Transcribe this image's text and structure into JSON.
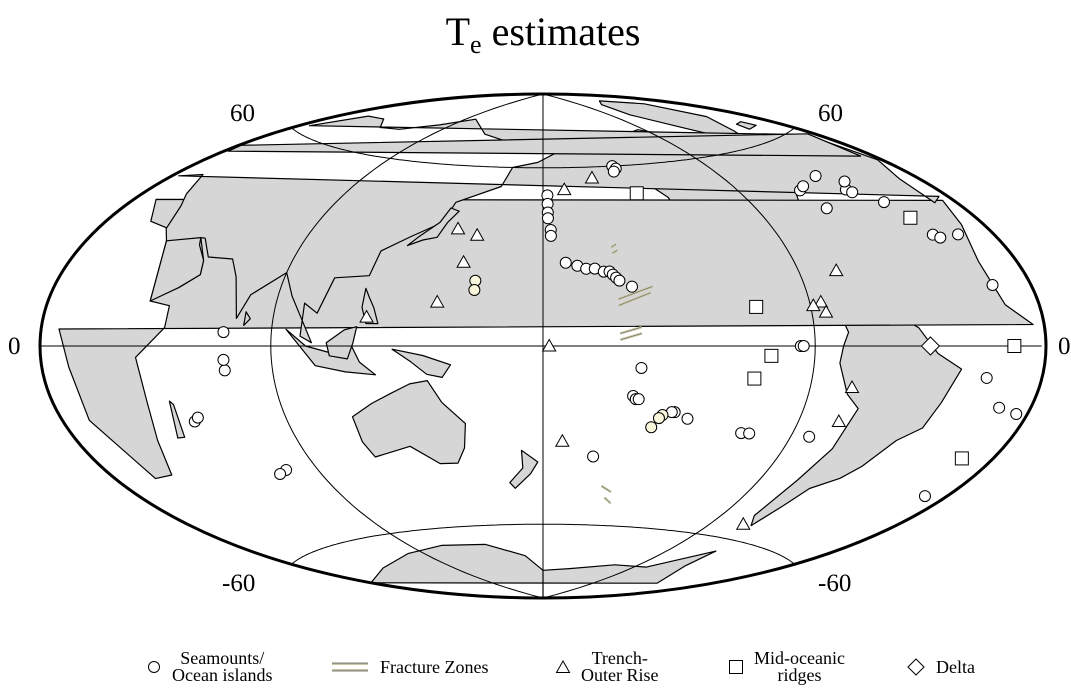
{
  "title": {
    "main": "T",
    "sub": "e",
    "rest": " estimates"
  },
  "lat_labels": {
    "n60_left": "60",
    "n60_right": "60",
    "s60_left": "-60",
    "s60_right": "-60",
    "zero_left": "0",
    "zero_right": "0"
  },
  "legend": {
    "seamounts_line1": "Seamounts/",
    "seamounts_line2": "Ocean islands",
    "fracture": "Fracture Zones",
    "trench_line1": "Trench-",
    "trench_line2": "Outer Rise",
    "ridge_line1": "Mid-oceanic",
    "ridge_line2": "ridges",
    "delta": "Delta"
  },
  "colors": {
    "land": "#d6d6d6",
    "coast": "#000000",
    "marker_fill": "#ffffff",
    "marker_highlight": "#fbf7dd",
    "fracture": "#c9c7a8"
  },
  "projection": "Hammer-Aitoff, central meridian 180",
  "markers": {
    "seamounts": [
      {
        "lon": -141,
        "lat": 60
      },
      {
        "lon": -140,
        "lat": 59
      },
      {
        "lon": -142,
        "lat": 58
      },
      {
        "lon": -178,
        "lat": 50
      },
      {
        "lon": -178,
        "lat": 47
      },
      {
        "lon": -178,
        "lat": 44
      },
      {
        "lon": -178,
        "lat": 42
      },
      {
        "lon": -177,
        "lat": 38
      },
      {
        "lon": -177,
        "lat": 36
      },
      {
        "lon": -172,
        "lat": 27
      },
      {
        "lon": -168,
        "lat": 26
      },
      {
        "lon": -165,
        "lat": 25
      },
      {
        "lon": -162,
        "lat": 25
      },
      {
        "lon": -159,
        "lat": 24
      },
      {
        "lon": -157,
        "lat": 24
      },
      {
        "lon": -156,
        "lat": 23
      },
      {
        "lon": -155,
        "lat": 22
      },
      {
        "lon": -154,
        "lat": 21
      },
      {
        "lon": -150,
        "lat": 19
      },
      {
        "lon": -148,
        "lat": -7
      },
      {
        "lon": -150,
        "lat": -16
      },
      {
        "lon": -149,
        "lat": -17
      },
      {
        "lon": -148,
        "lat": -17
      },
      {
        "lon": -135,
        "lat": -21
      },
      {
        "lon": -136,
        "lat": -21
      },
      {
        "lon": -130,
        "lat": -23
      },
      {
        "lon": -161,
        "lat": -36
      },
      {
        "lon": -109,
        "lat": -27
      },
      {
        "lon": -106,
        "lat": -27
      },
      {
        "lon": -83,
        "lat": -27
      },
      {
        "lon": -95,
        "lat": 0
      },
      {
        "lon": -94,
        "lat": 0
      },
      {
        "lon": -62,
        "lat": 46
      },
      {
        "lon": -58,
        "lat": 47
      },
      {
        "lon": -60,
        "lat": 40
      },
      {
        "lon": -45,
        "lat": 49
      },
      {
        "lon": -41,
        "lat": 44
      },
      {
        "lon": -40,
        "lat": 43
      },
      {
        "lon": -36,
        "lat": 46
      },
      {
        "lon": -32,
        "lat": 39
      },
      {
        "lon": -27,
        "lat": 29
      },
      {
        "lon": -25,
        "lat": 28
      },
      {
        "lon": -16,
        "lat": 28
      },
      {
        "lon": -17,
        "lat": 15
      },
      {
        "lon": -24,
        "lat": -8
      },
      {
        "lon": -14,
        "lat": -15
      },
      {
        "lon": -5,
        "lat": -16
      },
      {
        "lon": -10,
        "lat": -38
      },
      {
        "lon": 55,
        "lat": -21
      },
      {
        "lon": 57,
        "lat": -20
      },
      {
        "lon": 73,
        "lat": -7
      },
      {
        "lon": 73,
        "lat": -4
      },
      {
        "lon": 73,
        "lat": 4
      },
      {
        "lon": 77,
        "lat": -37
      },
      {
        "lon": 73,
        "lat": -38
      }
    ],
    "seamounts_highlight": [
      {
        "lon": 157,
        "lat": 21
      },
      {
        "lon": 157,
        "lat": 18
      },
      {
        "lon": -139,
        "lat": -22
      },
      {
        "lon": -140,
        "lat": -23
      },
      {
        "lon": -142,
        "lat": -26
      }
    ],
    "trench": [
      {
        "lon": 145,
        "lat": 14
      },
      {
        "lon": 155,
        "lat": 36
      },
      {
        "lon": 147,
        "lat": 38
      },
      {
        "lon": 152,
        "lat": 27
      },
      {
        "lon": -170,
        "lat": 52
      },
      {
        "lon": -155,
        "lat": 56
      },
      {
        "lon": -173,
        "lat": -31
      },
      {
        "lon": 122,
        "lat": 9
      },
      {
        "lon": -76,
        "lat": 22
      },
      {
        "lon": -86,
        "lat": 13
      },
      {
        "lon": -89,
        "lat": 12
      },
      {
        "lon": -85,
        "lat": 10
      },
      {
        "lon": -75,
        "lat": -22
      },
      {
        "lon": -75,
        "lat": -12
      },
      {
        "lon": -73,
        "lat": -55
      },
      {
        "lon": -178,
        "lat": 0
      }
    ],
    "ridges": [
      {
        "lon": -137,
        "lat": 50
      },
      {
        "lon": -109,
        "lat": 12
      },
      {
        "lon": -105,
        "lat": -3
      },
      {
        "lon": -110,
        "lat": -10
      },
      {
        "lon": -29,
        "lat": 34
      },
      {
        "lon": -14,
        "lat": 0
      },
      {
        "lon": -14,
        "lat": -28
      }
    ],
    "delta": [
      {
        "lon": -48,
        "lat": 0
      }
    ],
    "fracture_zones": [
      {
        "lon1": -155,
        "lat1": 32,
        "lon2": -153,
        "lat2": 33
      },
      {
        "lon1": -155,
        "lat1": 30,
        "lon2": -153,
        "lat2": 31
      },
      {
        "lon1": -155,
        "lat1": 15,
        "lon2": -143,
        "lat2": 19
      },
      {
        "lon1": -155,
        "lat1": 13,
        "lon2": -144,
        "lat2": 17
      },
      {
        "lon1": -155,
        "lat1": 4,
        "lon2": -148,
        "lat2": 6
      },
      {
        "lon1": -155,
        "lat1": 2,
        "lon2": -148,
        "lat2": 4
      },
      {
        "lon1": -155,
        "lat1": -46,
        "lon2": -150,
        "lat2": -48
      },
      {
        "lon1": -152,
        "lat1": -50,
        "lon2": -148,
        "lat2": -52
      }
    ]
  }
}
